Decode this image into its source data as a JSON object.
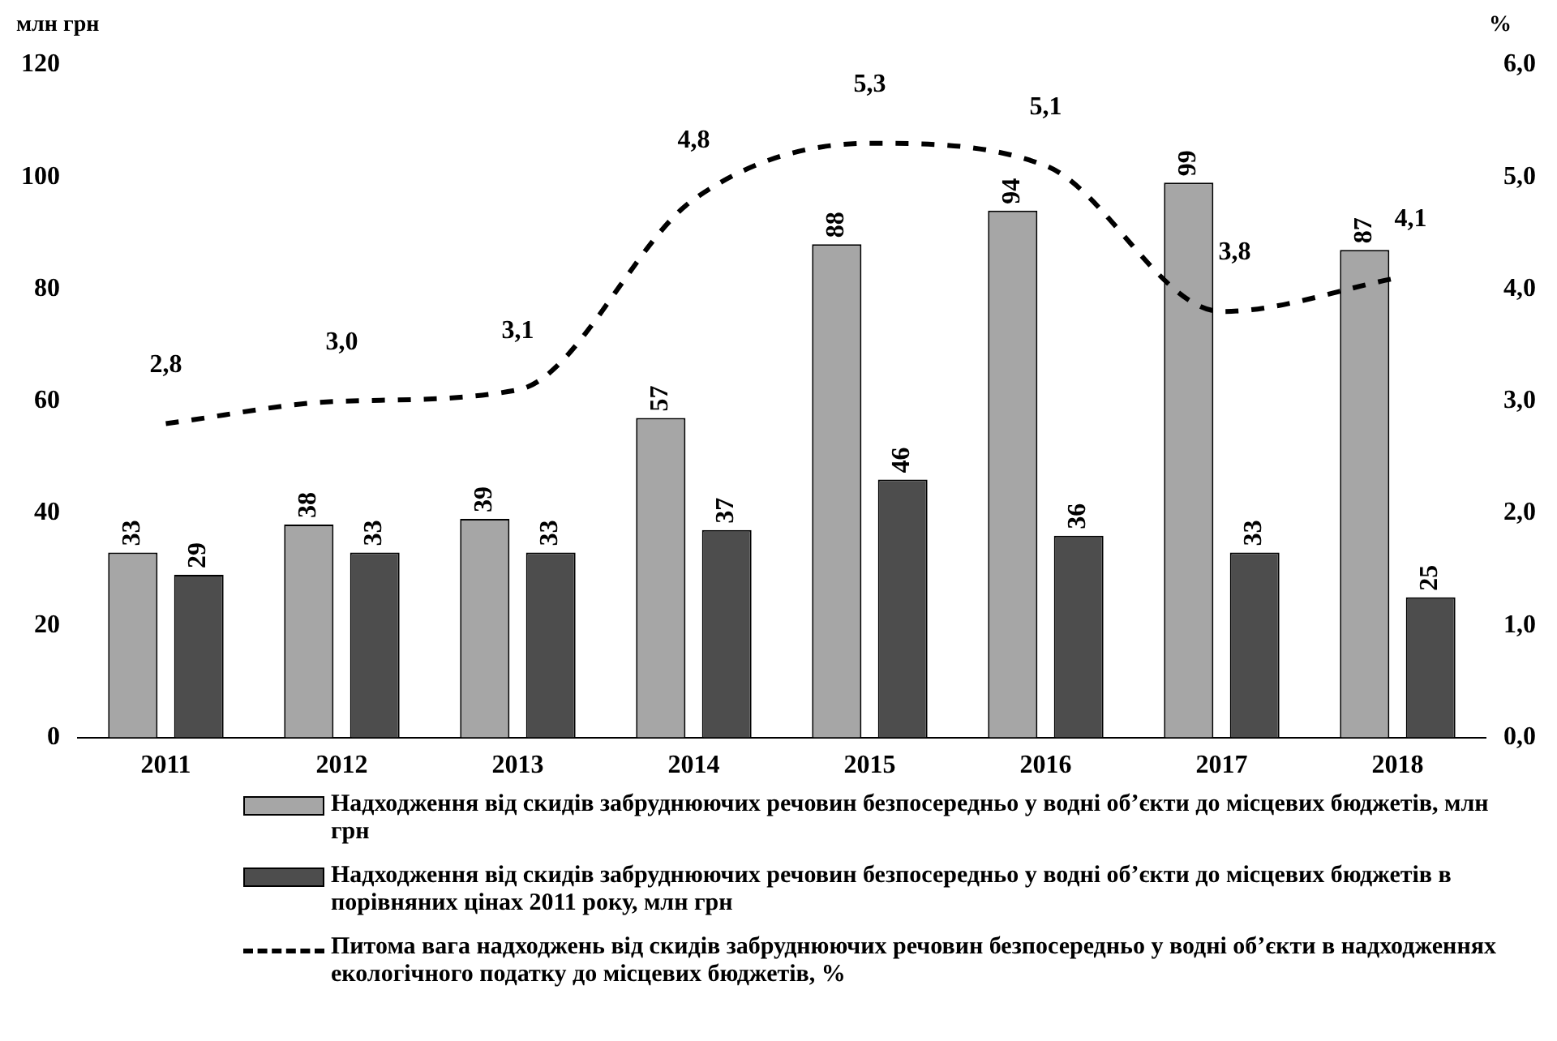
{
  "chart_data": {
    "type": "bar",
    "ylabel": "млн грн",
    "y2label": "%",
    "categories": [
      "2011",
      "2012",
      "2013",
      "2014",
      "2015",
      "2016",
      "2017",
      "2018"
    ],
    "series": [
      {
        "name": "Надходження від скидів забруднюючих речовин безпосередньо у водні об’єкти до місцевих бюджетів, млн грн",
        "color": "#a6a6a6",
        "values": [
          33,
          38,
          39,
          57,
          88,
          94,
          99,
          87
        ]
      },
      {
        "name": "Надходження від скидів забруднюючих речовин безпосередньо у водні об’єкти до місцевих бюджетів в порівняних цінах 2011 року, млн грн",
        "color": "#4d4d4d",
        "values": [
          29,
          33,
          33,
          37,
          46,
          36,
          33,
          25
        ]
      },
      {
        "name": "Питома вага надходжень від скидів забруднюючих речовин безпосередньо у водні об’єкти в надходженнях екологічного податку до місцевих бюджетів, %",
        "color": "#000000",
        "type": "line",
        "axis": "y2",
        "line_style": "dashed",
        "marker": "none",
        "values": [
          2.8,
          3.0,
          3.1,
          4.8,
          5.3,
          5.1,
          3.8,
          4.1
        ],
        "value_labels": [
          "2,8",
          "3,0",
          "3,1",
          "4,8",
          "5,3",
          "5,1",
          "3,8",
          "4,1"
        ]
      }
    ],
    "ylim": [
      0,
      120
    ],
    "yticks": [
      0,
      20,
      40,
      60,
      80,
      100,
      120
    ],
    "y2lim": [
      0,
      6
    ],
    "y2ticks": [
      {
        "value": 0,
        "label": "0,0"
      },
      {
        "value": 1,
        "label": "1,0"
      },
      {
        "value": 2,
        "label": "2,0"
      },
      {
        "value": 3,
        "label": "3,0"
      },
      {
        "value": 4,
        "label": "4,0"
      },
      {
        "value": 5,
        "label": "5,0"
      },
      {
        "value": 6,
        "label": "6,0"
      }
    ],
    "data_labels": true,
    "grid": false,
    "legend": "bottom"
  }
}
